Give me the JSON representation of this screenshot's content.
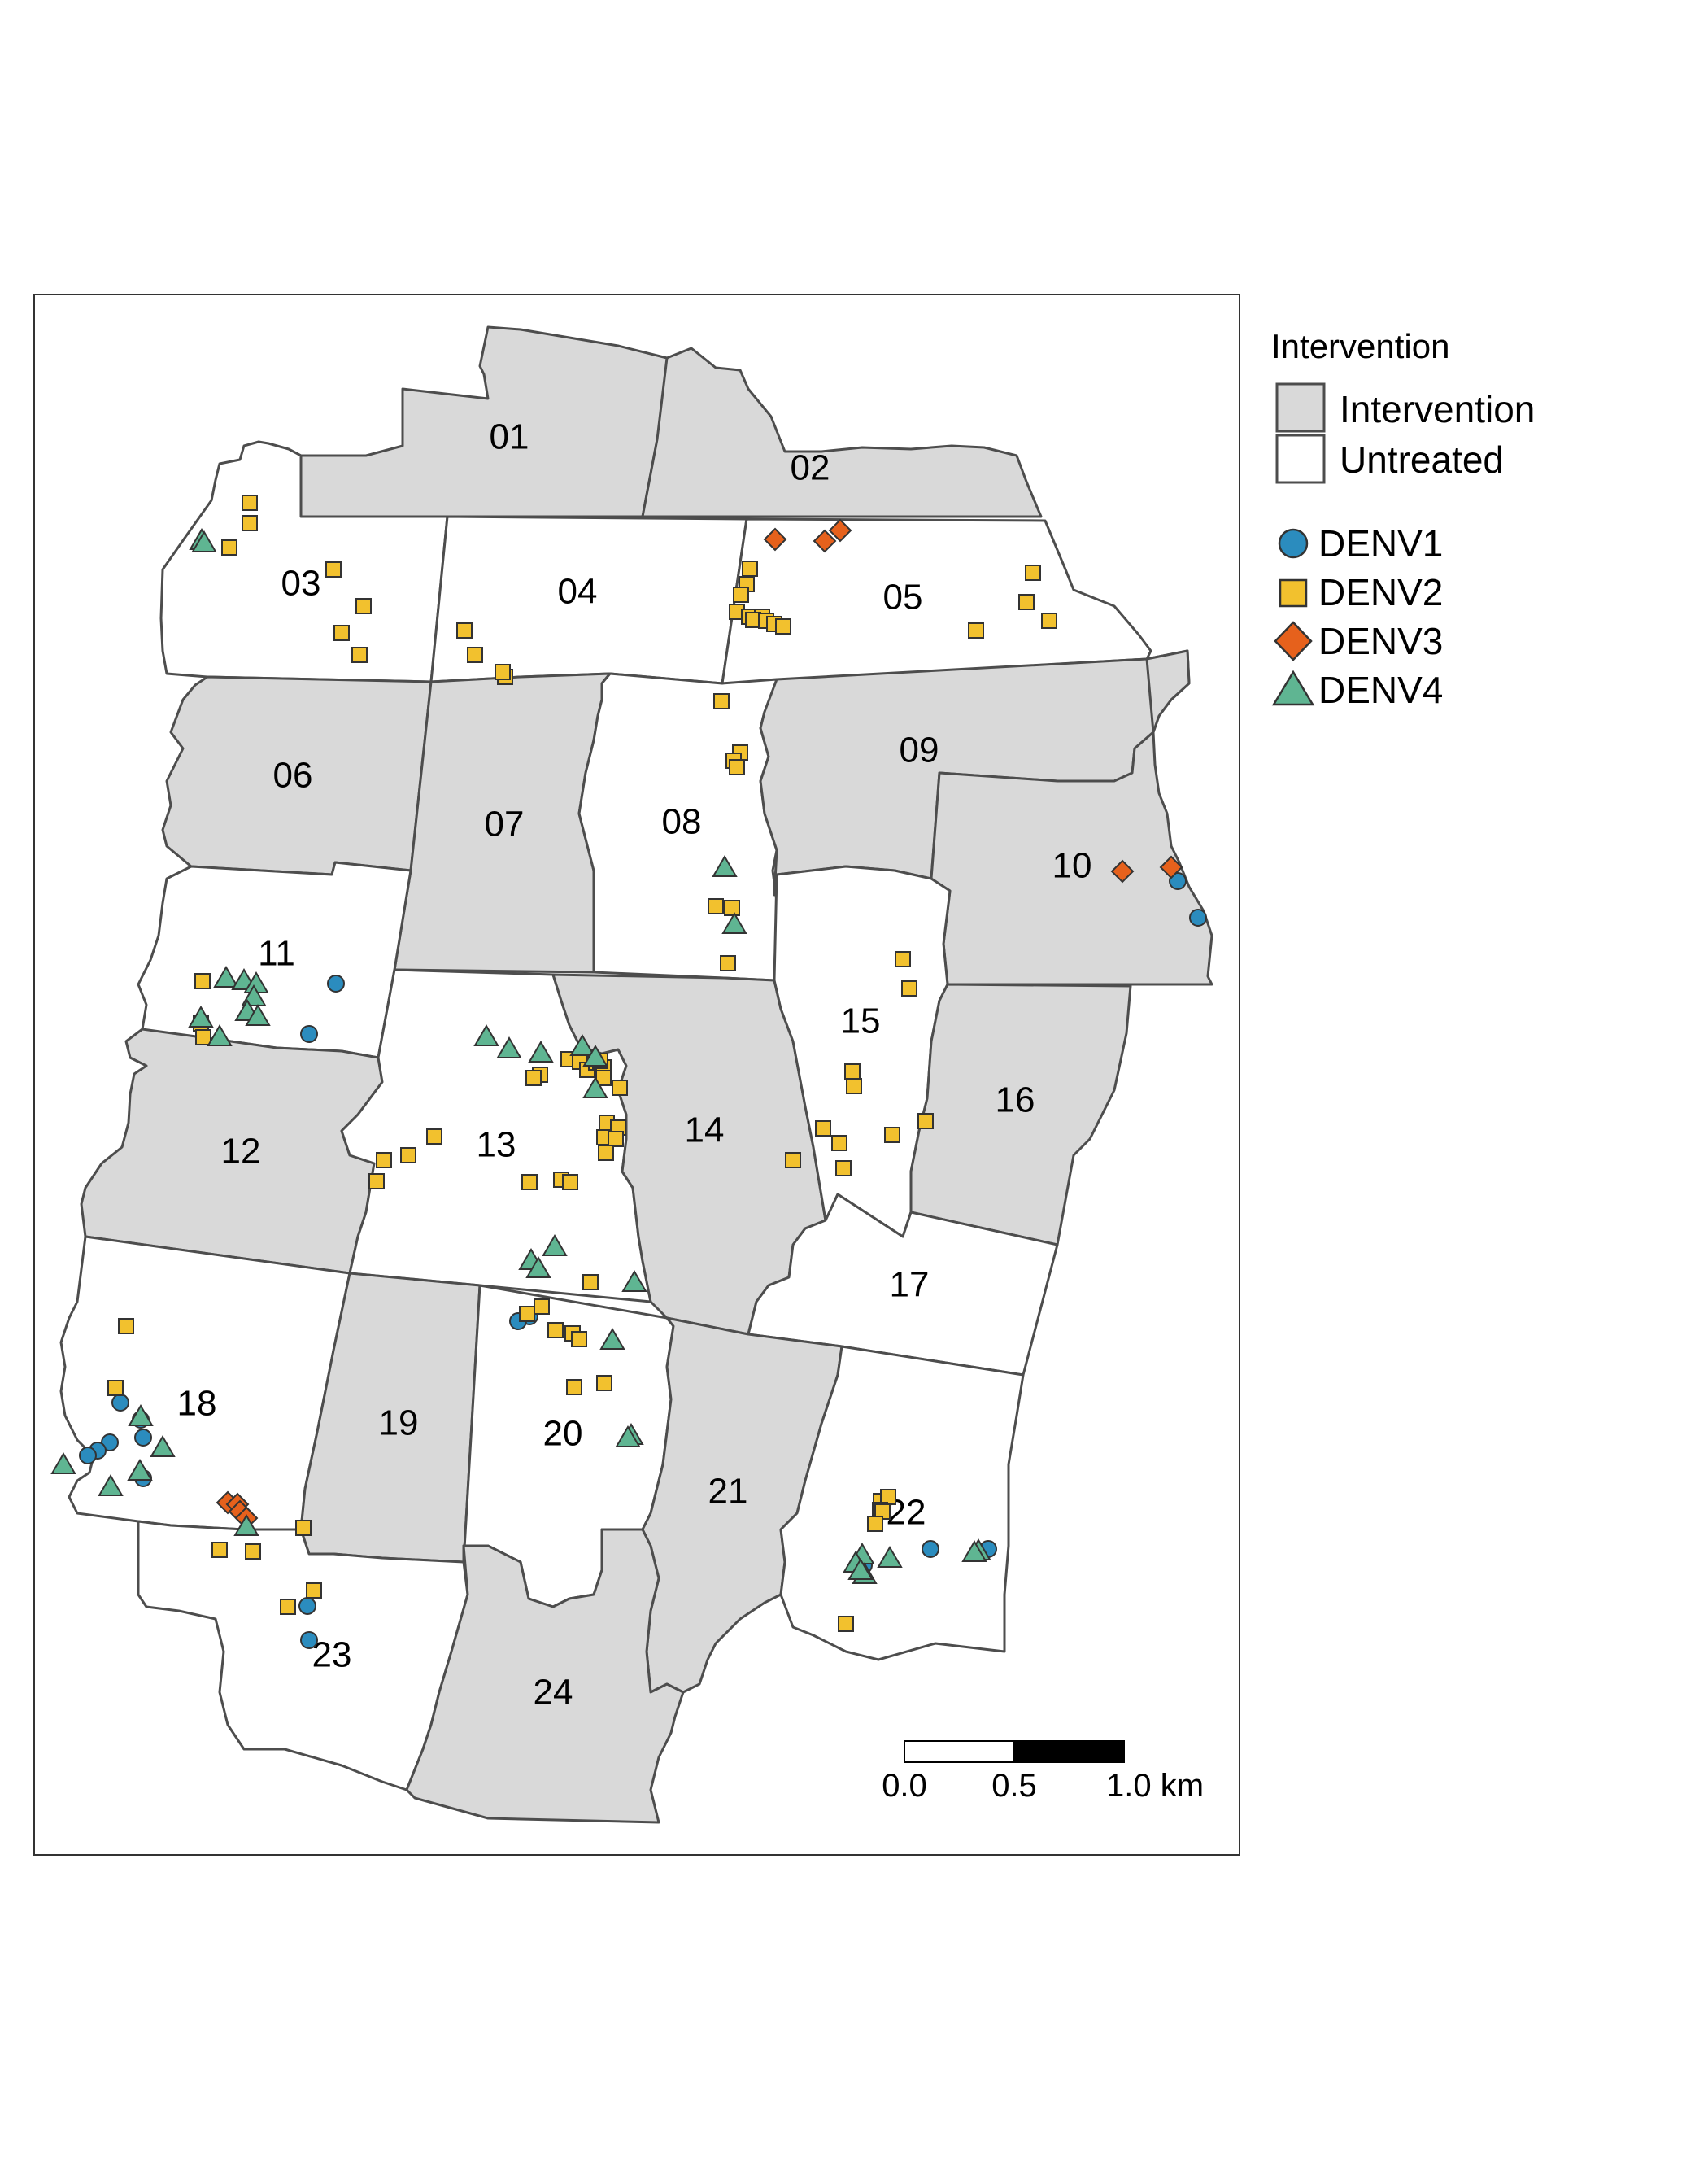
{
  "legend": {
    "title": "Intervention",
    "fill_items": [
      {
        "label": "Intervention",
        "color": "#d9d9d9"
      },
      {
        "label": "Untreated",
        "color": "#ffffff"
      }
    ],
    "serotype_items": [
      {
        "label": "DENV1",
        "shape": "circle",
        "color": "#2b8cbe"
      },
      {
        "label": "DENV2",
        "shape": "square",
        "color": "#f2c12e"
      },
      {
        "label": "DENV3",
        "shape": "diamond",
        "color": "#e6611c"
      },
      {
        "label": "DENV4",
        "shape": "triangle",
        "color": "#5fb592"
      }
    ]
  },
  "scale_bar": {
    "labels": [
      "0.0",
      "0.5",
      "1.0 km"
    ]
  },
  "clusters": [
    {
      "id": "01",
      "arm": "Intervention"
    },
    {
      "id": "02",
      "arm": "Intervention"
    },
    {
      "id": "03",
      "arm": "Untreated"
    },
    {
      "id": "04",
      "arm": "Untreated"
    },
    {
      "id": "05",
      "arm": "Untreated"
    },
    {
      "id": "06",
      "arm": "Intervention"
    },
    {
      "id": "07",
      "arm": "Intervention"
    },
    {
      "id": "08",
      "arm": "Untreated"
    },
    {
      "id": "09",
      "arm": "Intervention"
    },
    {
      "id": "10",
      "arm": "Intervention"
    },
    {
      "id": "11",
      "arm": "Untreated"
    },
    {
      "id": "12",
      "arm": "Intervention"
    },
    {
      "id": "13",
      "arm": "Untreated"
    },
    {
      "id": "14",
      "arm": "Intervention"
    },
    {
      "id": "15",
      "arm": "Untreated"
    },
    {
      "id": "16",
      "arm": "Intervention"
    },
    {
      "id": "17",
      "arm": "Untreated"
    },
    {
      "id": "18",
      "arm": "Untreated"
    },
    {
      "id": "19",
      "arm": "Intervention"
    },
    {
      "id": "20",
      "arm": "Untreated"
    },
    {
      "id": "21",
      "arm": "Intervention"
    },
    {
      "id": "22",
      "arm": "Untreated"
    },
    {
      "id": "23",
      "arm": "Untreated"
    },
    {
      "id": "24",
      "arm": "Intervention"
    }
  ],
  "case_counts_shown": {
    "DENV1": 18,
    "DENV2": 92,
    "DENV3": 9,
    "DENV4": 38
  }
}
